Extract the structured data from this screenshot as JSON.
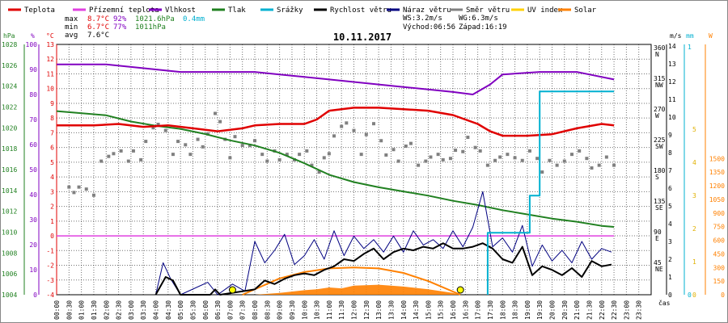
{
  "chart_data": {
    "type": "line",
    "title": "10.11.2017",
    "legend": [
      {
        "key": "teplota",
        "label": "Teplota",
        "color": "#e00000"
      },
      {
        "key": "prizemni",
        "label": "Přízemní teplota",
        "color": "#e040e0"
      },
      {
        "key": "vlhkost",
        "label": "Vlhkost",
        "color": "#8000c0"
      },
      {
        "key": "tlak",
        "label": "Tlak",
        "color": "#208020"
      },
      {
        "key": "srazky",
        "label": "Srážky",
        "color": "#00b0d0"
      },
      {
        "key": "rychlost",
        "label": "Rychlost větru",
        "color": "#000000"
      },
      {
        "key": "naraz",
        "label": "Náraz větru",
        "color": "#000080"
      },
      {
        "key": "smer",
        "label": "Směr větru",
        "color": "#808080"
      },
      {
        "key": "uv",
        "label": "UV index",
        "color": "#ffd000"
      },
      {
        "key": "solar",
        "label": "Solar",
        "color": "#ff8000"
      }
    ],
    "stats": {
      "labels": [
        "max",
        "min",
        "avg"
      ],
      "temp": [
        "8.7°C",
        "6.7°C",
        "7.6°C"
      ],
      "hum": [
        "92%",
        "77%",
        ""
      ],
      "press": [
        "1021.6hPa",
        "1011hPa",
        ""
      ],
      "rain": [
        "0.4mm",
        "",
        ""
      ],
      "ws": "WS:3.2m/s",
      "wg": "WG:6.3m/s",
      "sunrise": "Východ:06:56",
      "sunset": "Západ:16:19"
    },
    "axes": {
      "hpa": {
        "title": "hPa",
        "ticks": [
          "1028",
          "1026",
          "1024",
          "1022",
          "1020",
          "1018",
          "1016",
          "1014",
          "1012",
          "1010",
          "1008",
          "1006",
          "1004"
        ]
      },
      "pct": {
        "title": "%",
        "ticks": [
          "100",
          "90",
          "80",
          "70",
          "60",
          "50",
          "40",
          "30",
          "20",
          "10",
          "0"
        ]
      },
      "degc": {
        "title": "°C",
        "ticks": [
          "13",
          "12",
          "11",
          "10",
          "9",
          "8",
          "7",
          "6",
          "5",
          "4",
          "3",
          "2",
          "1",
          "0",
          "-1",
          "-2",
          "-3",
          "-4"
        ]
      },
      "dir": {
        "ticks": [
          "360",
          "315",
          "270",
          "225",
          "180",
          "135",
          "90",
          "45"
        ],
        "names": [
          "N",
          "NW",
          "W",
          "SW",
          "S",
          "SE",
          "E",
          "NE"
        ]
      },
      "ms": {
        "title": "m/s",
        "ticks": [
          "14",
          "13",
          "12",
          "11",
          "10",
          "9",
          "8",
          "7",
          "6",
          "5",
          "4",
          "3",
          "2",
          "1",
          "0"
        ]
      },
      "mm": {
        "title": "mm",
        "ticks": [
          "1",
          "0"
        ]
      },
      "wm2": {
        "title": "W",
        "ticks": [
          "1500",
          "1350",
          "1200",
          "1050",
          "900",
          "750",
          "600",
          "450",
          "300",
          "150",
          "0"
        ]
      },
      "uv": {
        "ticks": [
          "5",
          "4",
          "3",
          "2",
          "1",
          "0"
        ]
      },
      "xlabel": "čas",
      "times": [
        "00:00",
        "00:30",
        "01:00",
        "01:30",
        "02:00",
        "02:30",
        "03:00",
        "03:30",
        "04:00",
        "04:30",
        "05:00",
        "05:30",
        "06:00",
        "06:30",
        "07:00",
        "07:30",
        "08:00",
        "08:30",
        "09:00",
        "09:30",
        "10:00",
        "10:30",
        "11:00",
        "11:30",
        "12:00",
        "12:30",
        "13:00",
        "13:30",
        "14:00",
        "14:30",
        "15:00",
        "15:30",
        "16:00",
        "16:30",
        "17:00",
        "17:30",
        "18:00",
        "18:30",
        "19:00",
        "19:30",
        "20:00",
        "20:30",
        "21:00",
        "21:30",
        "22:00",
        "22:30",
        "23:00",
        "23:30"
      ]
    },
    "series": {
      "teplota": [
        [
          0,
          7.5
        ],
        [
          1.5,
          7.5
        ],
        [
          2.5,
          7.6
        ],
        [
          3.5,
          7.4
        ],
        [
          4.5,
          7.5
        ],
        [
          5.5,
          7.3
        ],
        [
          6.5,
          7.1
        ],
        [
          7.5,
          7.3
        ],
        [
          8,
          7.5
        ],
        [
          9,
          7.6
        ],
        [
          10,
          7.6
        ],
        [
          10.5,
          7.9
        ],
        [
          11,
          8.5
        ],
        [
          12,
          8.7
        ],
        [
          13,
          8.7
        ],
        [
          14,
          8.6
        ],
        [
          15,
          8.5
        ],
        [
          16,
          8.2
        ],
        [
          16.5,
          7.9
        ],
        [
          17,
          7.6
        ],
        [
          17.5,
          7.1
        ],
        [
          18,
          6.8
        ],
        [
          19,
          6.8
        ],
        [
          20,
          6.9
        ],
        [
          21,
          7.3
        ],
        [
          22,
          7.6
        ],
        [
          22.5,
          7.5
        ]
      ],
      "vlhkost": [
        [
          0,
          92
        ],
        [
          2,
          92
        ],
        [
          3,
          91
        ],
        [
          4,
          90
        ],
        [
          5,
          89
        ],
        [
          7,
          89
        ],
        [
          8,
          89
        ],
        [
          9,
          88
        ],
        [
          10,
          87
        ],
        [
          11,
          86
        ],
        [
          12,
          85
        ],
        [
          13,
          84
        ],
        [
          14,
          83
        ],
        [
          15,
          82
        ],
        [
          16,
          81
        ],
        [
          16.8,
          80
        ],
        [
          17.5,
          84
        ],
        [
          18,
          88
        ],
        [
          19.5,
          89
        ],
        [
          21,
          89
        ],
        [
          21.5,
          88
        ],
        [
          22.5,
          86
        ]
      ],
      "tlak": [
        [
          0,
          1021.6
        ],
        [
          2,
          1021.2
        ],
        [
          3,
          1020.6
        ],
        [
          4,
          1020.2
        ],
        [
          5,
          1019.9
        ],
        [
          6,
          1019.4
        ],
        [
          7,
          1018.8
        ],
        [
          8,
          1018.3
        ],
        [
          9,
          1017.6
        ],
        [
          10,
          1016.6
        ],
        [
          11,
          1015.5
        ],
        [
          12,
          1014.8
        ],
        [
          13,
          1014.3
        ],
        [
          14,
          1013.9
        ],
        [
          15,
          1013.5
        ],
        [
          16,
          1013.0
        ],
        [
          17,
          1012.6
        ],
        [
          18,
          1012.1
        ],
        [
          19,
          1011.7
        ],
        [
          20,
          1011.3
        ],
        [
          21,
          1011.0
        ],
        [
          22,
          1010.6
        ],
        [
          22.5,
          1010.5
        ]
      ],
      "srazky": [
        [
          17.4,
          0
        ],
        [
          17.4,
          0.25
        ],
        [
          18.2,
          0.25
        ],
        [
          18.2,
          0.25
        ],
        [
          19.1,
          0.25
        ],
        [
          19.1,
          0.3
        ],
        [
          19.1,
          0.4
        ],
        [
          19.5,
          0.4
        ],
        [
          19.5,
          0.82
        ],
        [
          22.5,
          0.82
        ]
      ],
      "prizemni": [
        [
          0,
          0
        ],
        [
          22.5,
          0
        ]
      ],
      "sunPath": [
        [
          7.5,
          0
        ],
        [
          9,
          180
        ],
        [
          10,
          250
        ],
        [
          11,
          290
        ],
        [
          12,
          300
        ],
        [
          13,
          290
        ],
        [
          14,
          240
        ],
        [
          15,
          150
        ],
        [
          16.3,
          0
        ]
      ],
      "solarArea": [
        [
          8,
          0
        ],
        [
          9,
          20
        ],
        [
          10,
          50
        ],
        [
          10.5,
          60
        ],
        [
          11,
          80
        ],
        [
          11.5,
          70
        ],
        [
          12,
          100
        ],
        [
          13,
          110
        ],
        [
          14,
          90
        ],
        [
          15,
          60
        ],
        [
          16,
          20
        ],
        [
          16.3,
          0
        ]
      ],
      "uvMarks": [
        [
          7.1,
          0
        ],
        [
          16.3,
          0
        ]
      ],
      "smer": [
        [
          0.5,
          158
        ],
        [
          0.7,
          150
        ],
        [
          0.9,
          158
        ],
        [
          1.2,
          155
        ],
        [
          1.5,
          146
        ],
        [
          1.8,
          196
        ],
        [
          2.1,
          203
        ],
        [
          2.3,
          207
        ],
        [
          2.6,
          211
        ],
        [
          2.9,
          196
        ],
        [
          3.1,
          211
        ],
        [
          3.4,
          198
        ],
        [
          3.6,
          225
        ],
        [
          3.9,
          245
        ],
        [
          4.1,
          250
        ],
        [
          4.4,
          241
        ],
        [
          4.7,
          206
        ],
        [
          4.9,
          225
        ],
        [
          5.2,
          220
        ],
        [
          5.4,
          206
        ],
        [
          5.7,
          228
        ],
        [
          5.9,
          217
        ],
        [
          6.1,
          236
        ],
        [
          6.4,
          266
        ],
        [
          6.6,
          254
        ],
        [
          6.8,
          228
        ],
        [
          7.0,
          201
        ],
        [
          7.2,
          232
        ],
        [
          7.5,
          219
        ],
        [
          7.8,
          219
        ],
        [
          8.0,
          226
        ],
        [
          8.3,
          206
        ],
        [
          8.5,
          196
        ],
        [
          8.8,
          211
        ],
        [
          9.0,
          198
        ],
        [
          9.3,
          206
        ],
        [
          9.6,
          198
        ],
        [
          9.8,
          206
        ],
        [
          10.1,
          211
        ],
        [
          10.3,
          190
        ],
        [
          10.6,
          180
        ],
        [
          10.8,
          201
        ],
        [
          11.0,
          207
        ],
        [
          11.2,
          233
        ],
        [
          11.5,
          247
        ],
        [
          11.7,
          252
        ],
        [
          12.0,
          241
        ],
        [
          12.3,
          206
        ],
        [
          12.5,
          235
        ],
        [
          12.8,
          251
        ],
        [
          13.1,
          226
        ],
        [
          13.3,
          205
        ],
        [
          13.6,
          213
        ],
        [
          13.8,
          196
        ],
        [
          14.1,
          218
        ],
        [
          14.3,
          222
        ],
        [
          14.6,
          190
        ],
        [
          14.9,
          196
        ],
        [
          15.1,
          202
        ],
        [
          15.4,
          206
        ],
        [
          15.6,
          198
        ],
        [
          15.9,
          200
        ],
        [
          16.1,
          212
        ],
        [
          16.4,
          210
        ],
        [
          16.6,
          231
        ],
        [
          16.9,
          216
        ],
        [
          17.1,
          211
        ],
        [
          17.4,
          190
        ],
        [
          17.7,
          197
        ],
        [
          17.9,
          202
        ],
        [
          18.2,
          206
        ],
        [
          18.5,
          201
        ],
        [
          18.8,
          197
        ],
        [
          19.1,
          211
        ],
        [
          19.4,
          200
        ],
        [
          19.6,
          180
        ],
        [
          19.9,
          197
        ],
        [
          20.2,
          190
        ],
        [
          20.5,
          196
        ],
        [
          20.8,
          206
        ],
        [
          21.1,
          211
        ],
        [
          21.4,
          200
        ],
        [
          21.6,
          186
        ],
        [
          21.9,
          190
        ],
        [
          22.2,
          202
        ],
        [
          22.5,
          190
        ]
      ],
      "rychlost": [
        [
          4,
          0
        ],
        [
          4.4,
          1
        ],
        [
          4.7,
          0.8
        ],
        [
          5,
          0
        ],
        [
          6.2,
          0
        ],
        [
          6.4,
          0.3
        ],
        [
          6.6,
          0
        ],
        [
          8,
          0.3
        ],
        [
          8.4,
          0.8
        ],
        [
          8.8,
          0.6
        ],
        [
          9.2,
          0.9
        ],
        [
          9.6,
          1.1
        ],
        [
          10,
          1.2
        ],
        [
          10.4,
          1.1
        ],
        [
          10.8,
          1.4
        ],
        [
          11.2,
          1.6
        ],
        [
          11.6,
          2.0
        ],
        [
          12,
          1.9
        ],
        [
          12.4,
          2.3
        ],
        [
          12.8,
          2.6
        ],
        [
          13.2,
          2.0
        ],
        [
          13.6,
          2.4
        ],
        [
          14,
          2.6
        ],
        [
          14.4,
          2.5
        ],
        [
          14.8,
          2.7
        ],
        [
          15.2,
          2.6
        ],
        [
          15.6,
          2.9
        ],
        [
          16,
          2.6
        ],
        [
          16.4,
          2.6
        ],
        [
          16.8,
          2.7
        ],
        [
          17.2,
          2.9
        ],
        [
          17.6,
          2.6
        ],
        [
          18,
          2.0
        ],
        [
          18.4,
          1.8
        ],
        [
          18.8,
          2.7
        ],
        [
          19.2,
          1.1
        ],
        [
          19.6,
          1.6
        ],
        [
          20,
          1.4
        ],
        [
          20.4,
          1.1
        ],
        [
          20.8,
          1.5
        ],
        [
          21.2,
          1.0
        ],
        [
          21.6,
          1.9
        ],
        [
          22,
          1.6
        ],
        [
          22.4,
          1.7
        ]
      ],
      "naraz": [
        [
          4,
          0
        ],
        [
          4.3,
          1.8
        ],
        [
          4.6,
          0.9
        ],
        [
          5,
          0
        ],
        [
          6.1,
          0.7
        ],
        [
          6.5,
          0
        ],
        [
          7.1,
          0.6
        ],
        [
          7.6,
          0.2
        ],
        [
          8,
          3
        ],
        [
          8.4,
          1.8
        ],
        [
          8.8,
          2.5
        ],
        [
          9.2,
          3.4
        ],
        [
          9.6,
          1.7
        ],
        [
          10,
          2.2
        ],
        [
          10.4,
          3.1
        ],
        [
          10.8,
          2.0
        ],
        [
          11.2,
          3.6
        ],
        [
          11.6,
          2.2
        ],
        [
          12,
          3.3
        ],
        [
          12.4,
          2.6
        ],
        [
          12.8,
          3.1
        ],
        [
          13.2,
          2.4
        ],
        [
          13.6,
          3.3
        ],
        [
          14,
          2.4
        ],
        [
          14.4,
          3.6
        ],
        [
          14.8,
          2.8
        ],
        [
          15.2,
          3.1
        ],
        [
          15.6,
          2.6
        ],
        [
          16,
          3.6
        ],
        [
          16.4,
          2.7
        ],
        [
          16.8,
          3.8
        ],
        [
          17.2,
          5.8
        ],
        [
          17.6,
          2.7
        ],
        [
          18,
          3.2
        ],
        [
          18.4,
          2.4
        ],
        [
          18.8,
          3.9
        ],
        [
          19.2,
          1.6
        ],
        [
          19.6,
          2.8
        ],
        [
          20,
          1.9
        ],
        [
          20.4,
          2.5
        ],
        [
          20.8,
          1.8
        ],
        [
          21.2,
          3.0
        ],
        [
          21.6,
          2.0
        ],
        [
          22,
          2.6
        ],
        [
          22.4,
          2.4
        ]
      ]
    }
  }
}
